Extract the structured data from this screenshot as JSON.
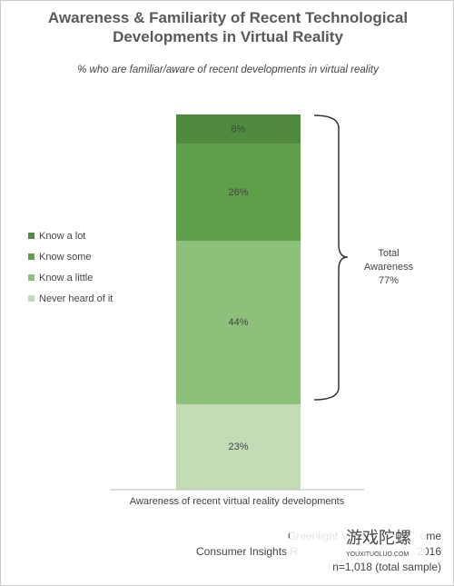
{
  "chart_data": {
    "type": "stacked_bar",
    "title": "Awareness & Familiarity of Recent Technological Developments in Virtual Reality",
    "subtitle": "% who are familiar/aware of recent developments in virtual reality",
    "categories": [
      "Awareness of recent virtual reality developments"
    ],
    "series": [
      {
        "name": "Know a lot",
        "color": "#4f8a3f",
        "values": [
          8
        ],
        "value_labels": [
          "8%"
        ]
      },
      {
        "name": "Know some",
        "color": "#5f9f49",
        "values": [
          26
        ],
        "value_labels": [
          "26%"
        ]
      },
      {
        "name": "Know a little",
        "color": "#8dc07b",
        "values": [
          44
        ],
        "value_labels": [
          "44%"
        ]
      },
      {
        "name": "Never heard of it",
        "color": "#c3dcb5",
        "values": [
          23
        ],
        "value_labels": [
          "23%"
        ]
      }
    ],
    "annotation": [
      "Total",
      "Awareness",
      "77%"
    ],
    "source": [
      "Greenlight VR &",
      "ome",
      "Consumer Insights R",
      "2016",
      "n=1,018 (total sample)"
    ],
    "watermark": [
      "游戏陀螺",
      "YOUXITUOLUO.COM"
    ]
  }
}
